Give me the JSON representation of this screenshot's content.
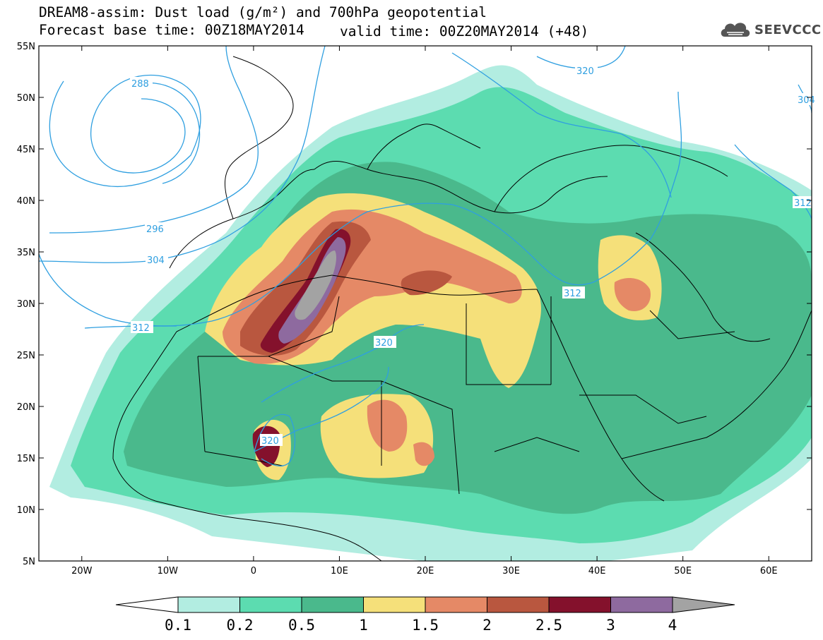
{
  "title": {
    "line1": "DREAM8-assim: Dust load (g/m²) and 700hPa geopotential",
    "line2": "Forecast base time: 00Z18MAY2014",
    "valid": "valid time: 00Z20MAY2014 (+48)"
  },
  "logo": {
    "text": "SEEVCCC",
    "icon": "cloud-logo-icon"
  },
  "map": {
    "lon_range": [
      -25,
      65
    ],
    "lat_range": [
      5,
      55
    ],
    "lat_ticks": [
      "55N",
      "50N",
      "45N",
      "40N",
      "35N",
      "30N",
      "25N",
      "20N",
      "15N",
      "10N",
      "5N"
    ],
    "lon_ticks": [
      "20W",
      "10W",
      "0",
      "10E",
      "20E",
      "30E",
      "40E",
      "50E",
      "60E"
    ],
    "geopotential_labels": [
      "288",
      "296",
      "304",
      "312",
      "320",
      "304",
      "312",
      "312",
      "320",
      "320",
      "312"
    ]
  },
  "colorbar": {
    "labels": [
      "0.1",
      "0.2",
      "0.5",
      "1",
      "1.5",
      "2",
      "2.5",
      "3",
      "4"
    ],
    "colors": [
      "#ffffff",
      "#b2ede1",
      "#5cdcb0",
      "#4ab98c",
      "#f5e07a",
      "#e58966",
      "#b9573f",
      "#84112c",
      "#8e6a9f",
      "#a3a3a3"
    ]
  },
  "colors": {
    "c01": "#b2ede1",
    "c02": "#5cdcb0",
    "c05": "#4ab98c",
    "c1": "#f5e07a",
    "c15": "#e58966",
    "c2": "#b9573f",
    "c25": "#84112c",
    "c3": "#8e6a9f",
    "c4": "#a3a3a3",
    "contour": "#2f9fe0"
  }
}
